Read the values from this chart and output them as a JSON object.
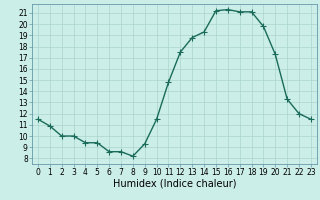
{
  "x": [
    0,
    1,
    2,
    3,
    4,
    5,
    6,
    7,
    8,
    9,
    10,
    11,
    12,
    13,
    14,
    15,
    16,
    17,
    18,
    19,
    20,
    21,
    22,
    23
  ],
  "y": [
    11.5,
    10.9,
    10.0,
    10.0,
    9.4,
    9.4,
    8.6,
    8.6,
    8.2,
    9.3,
    11.5,
    14.8,
    17.5,
    18.8,
    19.3,
    21.2,
    21.3,
    21.1,
    21.1,
    19.8,
    17.3,
    13.3,
    12.0,
    11.5
  ],
  "line_color": "#1a6b5a",
  "marker": "+",
  "markersize": 4,
  "linewidth": 1.0,
  "bg_color": "#cceee8",
  "plot_bg_color": "#cceee8",
  "grid_color": "#aad4cc",
  "xlabel": "Humidex (Indice chaleur)",
  "xlabel_fontsize": 7,
  "xlim": [
    -0.5,
    23.5
  ],
  "ylim": [
    7.5,
    21.8
  ],
  "yticks": [
    8,
    9,
    10,
    11,
    12,
    13,
    14,
    15,
    16,
    17,
    18,
    19,
    20,
    21
  ],
  "xticks": [
    0,
    1,
    2,
    3,
    4,
    5,
    6,
    7,
    8,
    9,
    10,
    11,
    12,
    13,
    14,
    15,
    16,
    17,
    18,
    19,
    20,
    21,
    22,
    23
  ],
  "tick_fontsize": 5.5,
  "spine_color": "#6699aa",
  "label_color": "#000000"
}
